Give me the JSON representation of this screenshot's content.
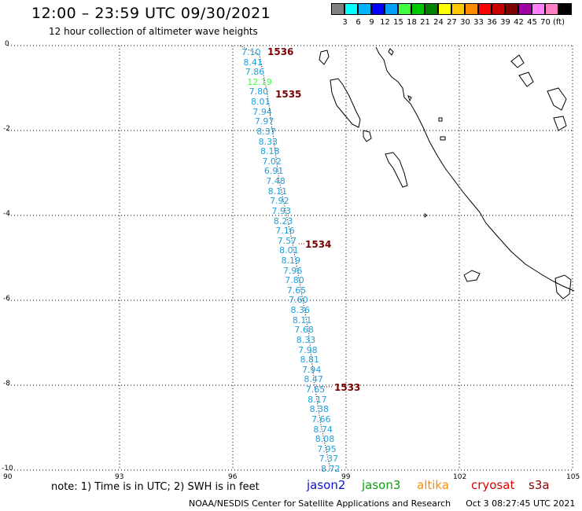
{
  "header": {
    "title": "12:00 – 23:59 UTC 09/30/2021",
    "subtitle": "12 hour collection of altimeter wave heights"
  },
  "colorbar": {
    "colors": [
      "#808080",
      "#00ffff",
      "#00b4ff",
      "#0000ff",
      "#00a0ff",
      "#40ff40",
      "#00c800",
      "#008000",
      "#ffff00",
      "#ffc800",
      "#ff8c00",
      "#ff0000",
      "#c80000",
      "#800000",
      "#a000a0",
      "#ff80ff",
      "#ff80c0",
      "#000000"
    ],
    "labels": [
      "3",
      "6",
      "9",
      "12",
      "15",
      "18",
      "21",
      "24",
      "27",
      "30",
      "33",
      "36",
      "39",
      "42",
      "45",
      "70",
      "(ft)"
    ]
  },
  "axes": {
    "y_labels": [
      "0",
      "-2",
      "-4",
      "-6",
      "-8",
      "-10"
    ],
    "x_labels": [
      "90",
      "93",
      "96",
      "99",
      "102",
      "105"
    ]
  },
  "passes": [
    "1536",
    "1535",
    "1534",
    "1533"
  ],
  "swh": {
    "values": [
      "7.10",
      "8.41",
      "7.86",
      "12.19",
      "7.80",
      "8.01",
      "7.94",
      "7.97",
      "8.37",
      "8.33",
      "8.18",
      "7.02",
      "6.91",
      "7.48",
      "8.11",
      "7.92",
      "7.93",
      "8.23",
      "7.16",
      "7.57",
      "8.01",
      "8.19",
      "7.96",
      "7.80",
      "7.65",
      "7.60",
      "8.36",
      "8.11",
      "7.68",
      "8.33",
      "7.98",
      "8.81",
      "7.94",
      "8.47",
      "7.65",
      "8.17",
      "8.38",
      "7.66",
      "8.74",
      "8.08",
      "7.95",
      "7.37",
      "8.72"
    ],
    "colors": {
      "normal": "#1ea0dc",
      "high": "#40ff40"
    }
  },
  "footer": {
    "note": "note: 1) Time is in UTC; 2) SWH is in feet",
    "missions": [
      {
        "name": "jason2",
        "color": "#1010d0"
      },
      {
        "name": "jason3",
        "color": "#10a010"
      },
      {
        "name": "altika",
        "color": "#ff8c00"
      },
      {
        "name": "cryosat",
        "color": "#e00000"
      },
      {
        "name": "s3a",
        "color": "#8b0000"
      }
    ],
    "credit": "NOAA/NESDIS Center for Satellite Applications and Research",
    "timestamp": "Oct  3 08:27:45 UTC 2021"
  }
}
